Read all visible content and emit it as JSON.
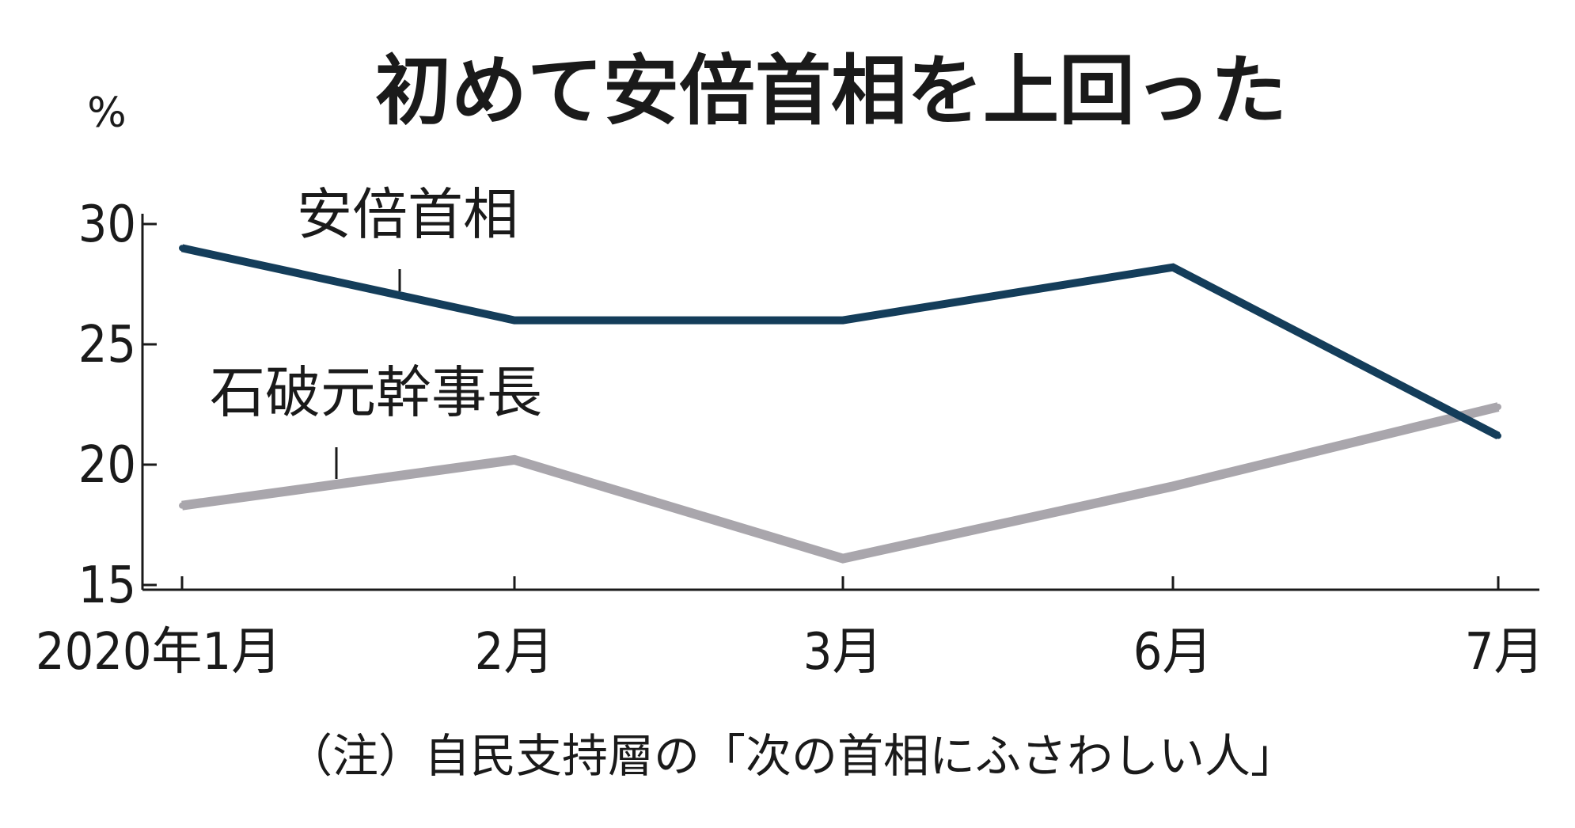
{
  "chart_data": {
    "type": "line",
    "title": "初めて安倍首相を上回った",
    "ylabel": "%",
    "xlabel": "",
    "categories": [
      "2020年1月",
      "2月",
      "3月",
      "6月",
      "7月"
    ],
    "ylim": [
      15,
      30
    ],
    "yticks": [
      15,
      20,
      25,
      30
    ],
    "grid": false,
    "series": [
      {
        "name": "安倍首相",
        "values": [
          29,
          26,
          26,
          28.2,
          21.2
        ],
        "color": "#143d5a"
      },
      {
        "name": "石破元幹事長",
        "values": [
          18.3,
          20.2,
          16.1,
          19.1,
          22.4
        ],
        "color": "#a9a6ac"
      }
    ],
    "note": "（注）自民支持層の「次の首相にふさわしい人」"
  }
}
